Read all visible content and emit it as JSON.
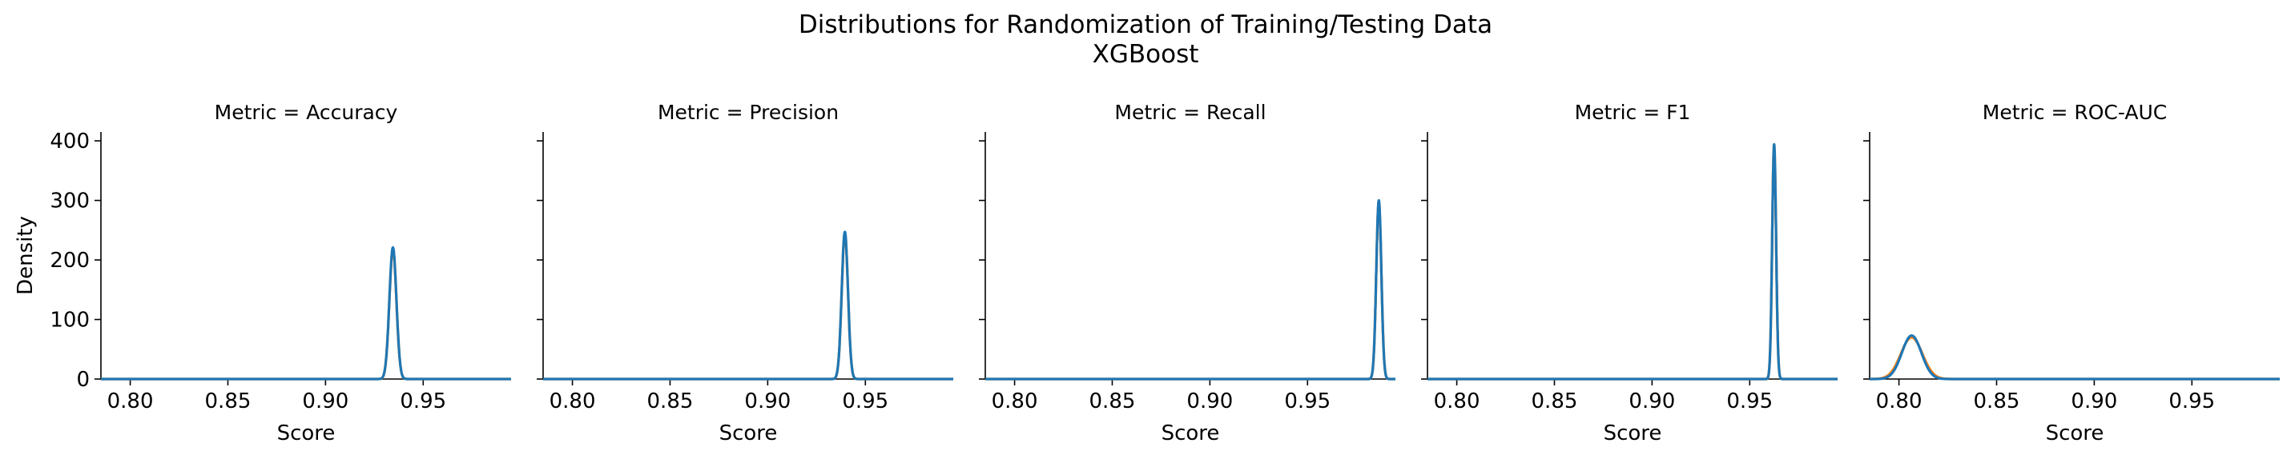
{
  "figure": {
    "title_line1": "Distributions for Randomization of Training/Testing Data",
    "title_line2": "XGBoost"
  },
  "chart_data": {
    "type": "line",
    "xlabel": "Score",
    "ylabel": "Density",
    "xlim": [
      0.785,
      0.995
    ],
    "ylim": [
      0,
      415
    ],
    "xticks": [
      0.8,
      0.85,
      0.9,
      0.95
    ],
    "xtick_labels": [
      "0.80",
      "0.85",
      "0.90",
      "0.95"
    ],
    "yticks": [
      0,
      100,
      200,
      300,
      400
    ],
    "ytick_labels": [
      "0",
      "100",
      "200",
      "300",
      "400"
    ],
    "grid": false,
    "series_colors": [
      "#1f77b4",
      "#ff7f0e"
    ],
    "panels": [
      {
        "title": "Metric = Accuracy",
        "curves": [
          {
            "color": "#ff7f0e",
            "center": 0.9345,
            "sd": 0.0018,
            "peak": 218
          },
          {
            "color": "#1f77b4",
            "center": 0.9345,
            "sd": 0.0018,
            "peak": 221
          }
        ]
      },
      {
        "title": "Metric = Precision",
        "curves": [
          {
            "color": "#ff7f0e",
            "center": 0.9395,
            "sd": 0.0016,
            "peak": 244
          },
          {
            "color": "#1f77b4",
            "center": 0.9395,
            "sd": 0.0016,
            "peak": 247
          }
        ]
      },
      {
        "title": "Metric = Recall",
        "curves": [
          {
            "color": "#ff7f0e",
            "center": 0.9865,
            "sd": 0.0013,
            "peak": 297
          },
          {
            "color": "#1f77b4",
            "center": 0.9865,
            "sd": 0.0013,
            "peak": 300
          }
        ]
      },
      {
        "title": "Metric = F1",
        "curves": [
          {
            "color": "#ff7f0e",
            "center": 0.9625,
            "sd": 0.001,
            "peak": 391
          },
          {
            "color": "#1f77b4",
            "center": 0.9625,
            "sd": 0.001,
            "peak": 394
          }
        ]
      },
      {
        "title": "Metric = ROC-AUC",
        "curves": [
          {
            "color": "#ff7f0e",
            "center": 0.8065,
            "sd": 0.0055,
            "peak": 70
          },
          {
            "color": "#1f77b4",
            "center": 0.8065,
            "sd": 0.005,
            "peak": 73
          }
        ]
      }
    ]
  }
}
